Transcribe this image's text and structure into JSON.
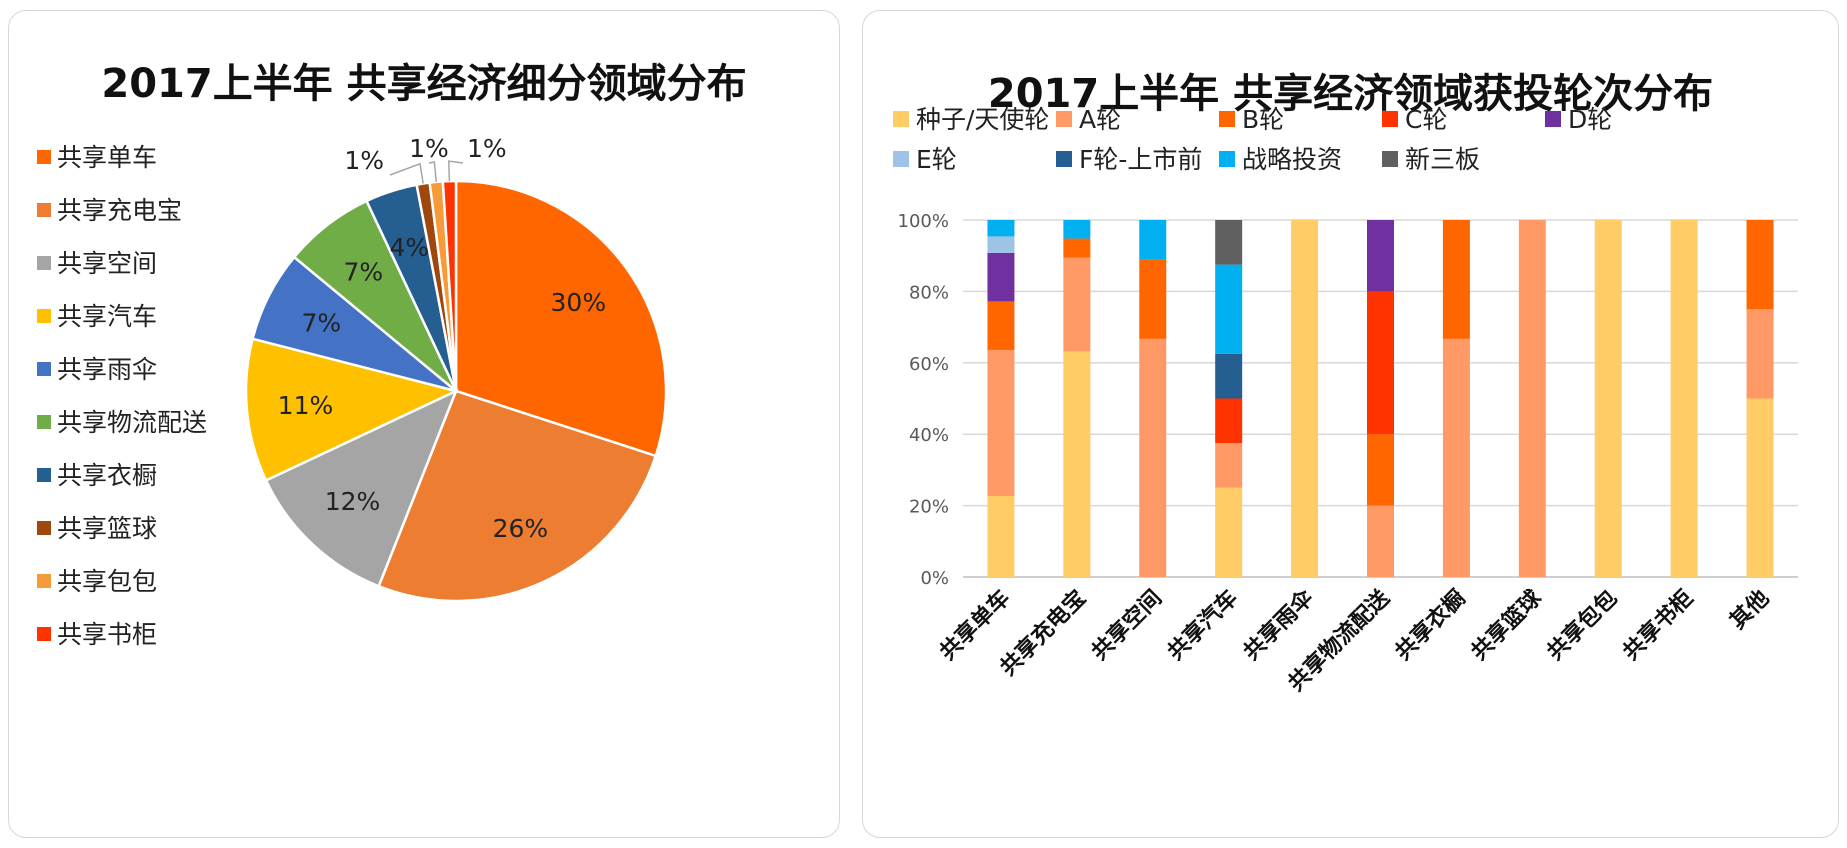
{
  "pie_chart": {
    "type": "pie",
    "title": "2017上半年 共享经济细分领域分布",
    "categories": [
      "共享单车",
      "共享充电宝",
      "共享空间",
      "共享汽车",
      "共享雨伞",
      "共享物流配送",
      "共享衣橱",
      "共享篮球",
      "共享包包",
      "共享书柜"
    ],
    "values": [
      30,
      26,
      12,
      11,
      7,
      7,
      4,
      1,
      1,
      1
    ],
    "labels": [
      "30%",
      "26%",
      "12%",
      "11%",
      "7%",
      "7%",
      "4%",
      "1%",
      "1%",
      "1%"
    ],
    "colors": [
      "#FF6600",
      "#ED7D31",
      "#A5A5A5",
      "#FFC000",
      "#4472C4",
      "#70AD47",
      "#255E91",
      "#9E480E",
      "#F79A3A",
      "#FF3300"
    ],
    "legend": "left"
  },
  "chart_data": {
    "type": "bar",
    "stacked": true,
    "title": "2017上半年 共享经济领域获投轮次分布",
    "categories": [
      "共享单车",
      "共享充电宝",
      "共享空间",
      "共享汽车",
      "共享雨伞",
      "共享物流配送",
      "共享衣橱",
      "共享篮球",
      "共享包包",
      "共享书柜",
      "其他"
    ],
    "ylim": [
      0,
      100
    ],
    "yticks": [
      "0%",
      "20%",
      "40%",
      "60%",
      "80%",
      "100%"
    ],
    "grid": true,
    "legend": "top",
    "series": [
      {
        "name": "种子/天使轮",
        "color": "#FFCC66",
        "values": [
          22.7,
          63.2,
          0,
          25,
          100,
          0,
          0,
          0,
          100,
          100,
          50
        ]
      },
      {
        "name": "A轮",
        "color": "#FF9966",
        "values": [
          40.9,
          26.3,
          66.7,
          12.5,
          0,
          20,
          66.7,
          100,
          0,
          0,
          25
        ]
      },
      {
        "name": "B轮",
        "color": "#FF6600",
        "values": [
          13.6,
          5.3,
          22.2,
          0,
          0,
          20,
          33.3,
          0,
          0,
          0,
          25
        ]
      },
      {
        "name": "C轮",
        "color": "#FF3300",
        "values": [
          0,
          0,
          0,
          12.5,
          0,
          40,
          0,
          0,
          0,
          0,
          0
        ]
      },
      {
        "name": "D轮",
        "color": "#7030A0",
        "values": [
          13.6,
          0,
          0,
          0,
          0,
          20,
          0,
          0,
          0,
          0,
          0
        ]
      },
      {
        "name": "E轮",
        "color": "#9DC3E6",
        "values": [
          4.6,
          0,
          0,
          0,
          0,
          0,
          0,
          0,
          0,
          0,
          0
        ]
      },
      {
        "name": "F轮-上市前",
        "color": "#255E91",
        "values": [
          0,
          0,
          0,
          12.5,
          0,
          0,
          0,
          0,
          0,
          0,
          0
        ]
      },
      {
        "name": "战略投资",
        "color": "#00B0F0",
        "values": [
          4.6,
          5.2,
          11.1,
          25,
          0,
          0,
          0,
          0,
          0,
          0,
          0
        ]
      },
      {
        "name": "新三板",
        "color": "#606060",
        "values": [
          0,
          0,
          0,
          12.5,
          0,
          0,
          0,
          0,
          0,
          0,
          0
        ]
      }
    ]
  }
}
